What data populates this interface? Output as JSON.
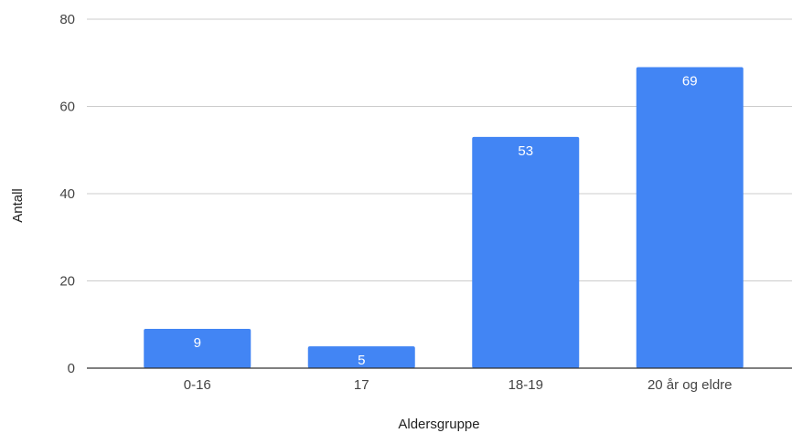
{
  "chart_data": {
    "type": "bar",
    "categories": [
      "0-16",
      "17",
      "18-19",
      "20 år og eldre"
    ],
    "series": [
      {
        "values": [
          9,
          5,
          53,
          69
        ],
        "color": "#4285f4"
      }
    ],
    "data_labels": [
      "9",
      "5",
      "53",
      "69"
    ],
    "xlabel": "Aldersgruppe",
    "ylabel": "Antall",
    "ylim": [
      0,
      80
    ],
    "y_ticks": [
      0,
      20,
      40,
      60,
      80
    ],
    "grid": true,
    "legend": "none"
  }
}
